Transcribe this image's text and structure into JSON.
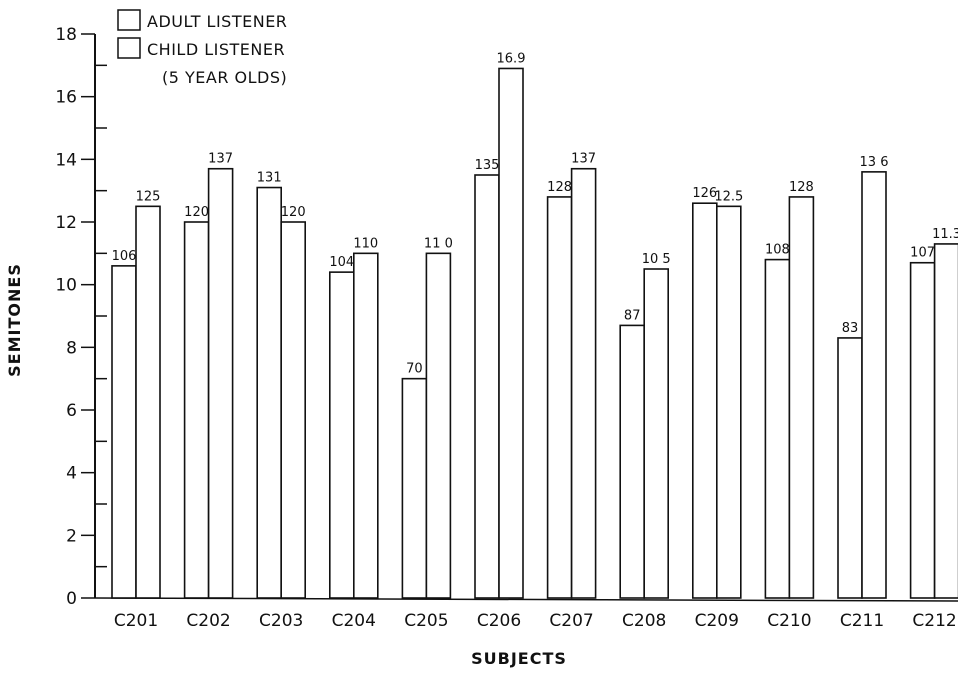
{
  "chart_data": {
    "type": "bar",
    "title": "",
    "xlabel": "SUBJECTS",
    "ylabel": "SEMITONES",
    "ylim": [
      0,
      18
    ],
    "yticks": [
      0,
      2,
      4,
      6,
      8,
      10,
      12,
      14,
      16,
      18
    ],
    "ytick_labels": [
      "0",
      "2",
      "4",
      "6",
      "8",
      "10",
      "12",
      "14",
      "16",
      "18"
    ],
    "grid": false,
    "legend_position": "top-left",
    "categories": [
      "C201",
      "C202",
      "C203",
      "C204",
      "C205",
      "C206",
      "C207",
      "C208",
      "C209",
      "C210",
      "C211",
      "C212"
    ],
    "series": [
      {
        "name": "ADULT LISTENER",
        "values": [
          10.6,
          12.0,
          13.1,
          10.4,
          7.0,
          13.5,
          12.8,
          8.7,
          12.6,
          10.8,
          8.3,
          10.7
        ],
        "labels": [
          "106",
          "120",
          "131",
          "104",
          "70",
          "135",
          "128",
          "87",
          "126",
          "108",
          "83",
          "107"
        ]
      },
      {
        "name": "CHILD LISTENER",
        "name_line2": "(5 YEAR OLDS)",
        "values": [
          12.5,
          13.7,
          12.0,
          11.0,
          11.0,
          16.9,
          13.7,
          10.5,
          12.5,
          12.8,
          13.6,
          11.3
        ],
        "labels": [
          "125",
          "137",
          "120",
          "110",
          "11 0",
          "16.9",
          "137",
          "10 5",
          "12.5",
          "128",
          "13 6",
          "11.3"
        ]
      }
    ]
  }
}
